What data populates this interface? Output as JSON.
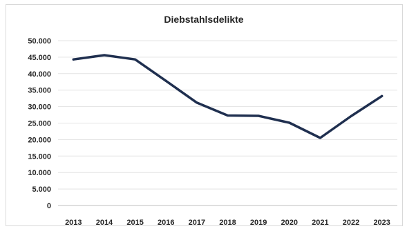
{
  "chart_data": {
    "type": "line",
    "title": "Diebstahlsdelikte",
    "xlabel": "",
    "ylabel": "",
    "categories": [
      "2013",
      "2014",
      "2015",
      "2016",
      "2017",
      "2018",
      "2019",
      "2020",
      "2021",
      "2022",
      "2023"
    ],
    "series": [
      {
        "values": [
          44300,
          45600,
          44300,
          37800,
          31200,
          27300,
          27200,
          25100,
          20500,
          27100,
          33200
        ],
        "color": "#1f2f4f"
      }
    ],
    "ylim": [
      0,
      50000
    ],
    "yticks": [
      0,
      5000,
      10000,
      15000,
      20000,
      25000,
      30000,
      35000,
      40000,
      45000,
      50000
    ],
    "ytick_labels": [
      "0",
      "5.000",
      "10.000",
      "15.000",
      "20.000",
      "25.000",
      "30.000",
      "35.000",
      "40.000",
      "45.000",
      "50.000"
    ],
    "grid": true,
    "legend": "none"
  }
}
